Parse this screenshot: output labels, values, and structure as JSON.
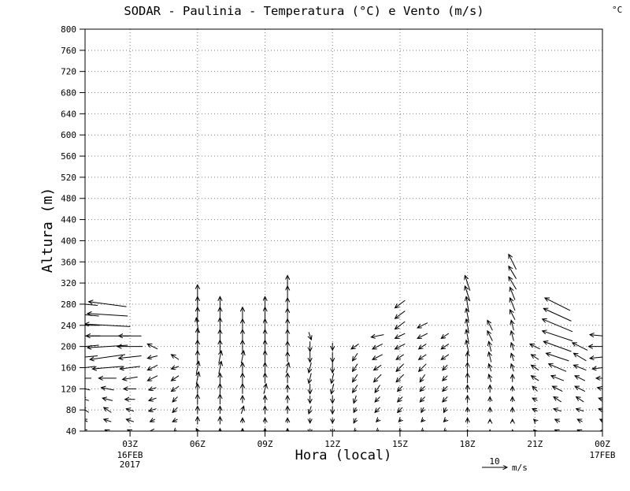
{
  "chart_data": {
    "type": "vector",
    "title": "SODAR  - Paulinia - Temperatura (°C) e Vento (m/s)",
    "units_corner_label": "°C",
    "xlabel": "Hora (local)",
    "ylabel": "Altura (m)",
    "ylim": [
      40,
      800
    ],
    "y_ticks": [
      800,
      760,
      720,
      680,
      640,
      600,
      560,
      520,
      480,
      440,
      400,
      360,
      320,
      280,
      240,
      200,
      160,
      120,
      80,
      40
    ],
    "x_tick_labels": [
      "03Z",
      "06Z",
      "09Z",
      "12Z",
      "15Z",
      "18Z",
      "21Z",
      "00Z"
    ],
    "x_tick_hours": [
      3,
      6,
      9,
      12,
      15,
      18,
      21,
      24
    ],
    "x_hours_range": [
      1,
      24
    ],
    "x_start_date": {
      "line1": "16FEB",
      "line2": "2017"
    },
    "x_end_date": "17FEB",
    "grid": "dotted",
    "legend_position": "bottom-right",
    "reference_vector": {
      "label": "10",
      "unit": "m/s",
      "speed_ms": 10
    },
    "wind_vectors_hour_height_u_v": [
      [
        1,
        40,
        -2,
        1
      ],
      [
        1,
        60,
        -2,
        1
      ],
      [
        1,
        80,
        -3,
        2
      ],
      [
        1,
        100,
        -3,
        1
      ],
      [
        1,
        120,
        -4,
        1
      ],
      [
        1,
        140,
        -5,
        0
      ],
      [
        1,
        160,
        -8,
        -1
      ],
      [
        1,
        180,
        -10,
        -1
      ],
      [
        1,
        200,
        -11,
        -1
      ],
      [
        1,
        220,
        -12,
        0
      ],
      [
        1,
        240,
        -12,
        0
      ],
      [
        1,
        260,
        -11,
        1
      ],
      [
        1,
        280,
        -10,
        1
      ],
      [
        2,
        40,
        -2,
        1
      ],
      [
        2,
        60,
        -3,
        1
      ],
      [
        2,
        80,
        -3,
        2
      ],
      [
        2,
        100,
        -4,
        1
      ],
      [
        2,
        120,
        -5,
        1
      ],
      [
        2,
        140,
        -7,
        0
      ],
      [
        2,
        160,
        -12,
        -1
      ],
      [
        2,
        180,
        -14,
        -2
      ],
      [
        2,
        200,
        -16,
        -1
      ],
      [
        2,
        220,
        -17,
        0
      ],
      [
        2,
        240,
        -18,
        1
      ],
      [
        2,
        260,
        -16,
        1
      ],
      [
        2,
        280,
        -15,
        2
      ],
      [
        3,
        40,
        -2,
        1
      ],
      [
        3,
        60,
        -3,
        1
      ],
      [
        3,
        80,
        -3,
        1
      ],
      [
        3,
        100,
        -4,
        0
      ],
      [
        3,
        120,
        -5,
        0
      ],
      [
        3,
        140,
        -6,
        -1
      ],
      [
        3,
        160,
        -8,
        -1
      ],
      [
        3,
        180,
        -9,
        -1
      ],
      [
        3,
        200,
        -10,
        0
      ],
      [
        3,
        220,
        -9,
        0
      ],
      [
        4,
        40,
        -2,
        0
      ],
      [
        4,
        60,
        -2,
        -1
      ],
      [
        4,
        80,
        -3,
        -1
      ],
      [
        4,
        100,
        -3,
        -1
      ],
      [
        4,
        120,
        -3,
        -1
      ],
      [
        4,
        140,
        -4,
        -2
      ],
      [
        4,
        160,
        -4,
        -2
      ],
      [
        4,
        180,
        -4,
        -1
      ],
      [
        4,
        200,
        -4,
        2
      ],
      [
        5,
        40,
        -1,
        -1
      ],
      [
        5,
        60,
        -2,
        -1
      ],
      [
        5,
        80,
        -2,
        -2
      ],
      [
        5,
        100,
        -2,
        -2
      ],
      [
        5,
        120,
        -3,
        -2
      ],
      [
        5,
        140,
        -3,
        -2
      ],
      [
        5,
        160,
        -3,
        -1
      ],
      [
        5,
        180,
        -3,
        2
      ],
      [
        6,
        40,
        -1,
        2
      ],
      [
        6,
        60,
        0,
        3
      ],
      [
        6,
        80,
        0,
        3
      ],
      [
        6,
        100,
        0,
        4
      ],
      [
        6,
        120,
        0,
        4
      ],
      [
        6,
        140,
        1,
        5
      ],
      [
        6,
        160,
        1,
        5
      ],
      [
        6,
        180,
        0,
        5
      ],
      [
        6,
        200,
        0,
        5
      ],
      [
        6,
        220,
        0,
        6
      ],
      [
        6,
        240,
        -1,
        6
      ],
      [
        6,
        260,
        0,
        6
      ],
      [
        6,
        280,
        0,
        6
      ],
      [
        6,
        300,
        0,
        7
      ],
      [
        7,
        40,
        0,
        2
      ],
      [
        7,
        60,
        0,
        3
      ],
      [
        7,
        80,
        0,
        3
      ],
      [
        7,
        100,
        0,
        4
      ],
      [
        7,
        120,
        0,
        4
      ],
      [
        7,
        140,
        0,
        4
      ],
      [
        7,
        160,
        1,
        5
      ],
      [
        7,
        180,
        1,
        5
      ],
      [
        7,
        200,
        0,
        5
      ],
      [
        7,
        220,
        0,
        5
      ],
      [
        7,
        240,
        0,
        6
      ],
      [
        7,
        260,
        0,
        6
      ],
      [
        7,
        280,
        0,
        6
      ],
      [
        8,
        40,
        0,
        2
      ],
      [
        8,
        60,
        0,
        2
      ],
      [
        8,
        80,
        1,
        3
      ],
      [
        8,
        100,
        0,
        3
      ],
      [
        8,
        120,
        0,
        4
      ],
      [
        8,
        140,
        0,
        4
      ],
      [
        8,
        160,
        0,
        4
      ],
      [
        8,
        180,
        1,
        5
      ],
      [
        8,
        200,
        0,
        5
      ],
      [
        8,
        220,
        0,
        5
      ],
      [
        8,
        240,
        0,
        5
      ],
      [
        8,
        260,
        0,
        6
      ],
      [
        9,
        40,
        0,
        2
      ],
      [
        9,
        60,
        0,
        2
      ],
      [
        9,
        80,
        0,
        3
      ],
      [
        9,
        100,
        0,
        3
      ],
      [
        9,
        120,
        1,
        4
      ],
      [
        9,
        140,
        0,
        4
      ],
      [
        9,
        160,
        0,
        4
      ],
      [
        9,
        180,
        0,
        5
      ],
      [
        9,
        200,
        0,
        5
      ],
      [
        9,
        220,
        0,
        5
      ],
      [
        9,
        240,
        0,
        5
      ],
      [
        9,
        260,
        0,
        6
      ],
      [
        9,
        280,
        0,
        6
      ],
      [
        10,
        40,
        0,
        2
      ],
      [
        10,
        60,
        0,
        2
      ],
      [
        10,
        80,
        0,
        3
      ],
      [
        10,
        100,
        0,
        3
      ],
      [
        10,
        120,
        0,
        3
      ],
      [
        10,
        140,
        0,
        4
      ],
      [
        10,
        160,
        1,
        4
      ],
      [
        10,
        180,
        0,
        4
      ],
      [
        10,
        200,
        0,
        4
      ],
      [
        10,
        220,
        0,
        5
      ],
      [
        10,
        240,
        0,
        5
      ],
      [
        10,
        260,
        0,
        5
      ],
      [
        10,
        280,
        0,
        5
      ],
      [
        10,
        300,
        0,
        6
      ],
      [
        10,
        320,
        0,
        6
      ],
      [
        11,
        40,
        0,
        -2
      ],
      [
        11,
        60,
        0,
        -2
      ],
      [
        11,
        80,
        -1,
        -3
      ],
      [
        11,
        100,
        0,
        -3
      ],
      [
        11,
        120,
        0,
        -4
      ],
      [
        11,
        140,
        -1,
        -4
      ],
      [
        11,
        160,
        -1,
        -4
      ],
      [
        11,
        180,
        0,
        -4
      ],
      [
        11,
        200,
        0,
        -4
      ],
      [
        11,
        220,
        1,
        -3
      ],
      [
        12,
        40,
        0,
        -2
      ],
      [
        12,
        60,
        0,
        -2
      ],
      [
        12,
        80,
        0,
        -3
      ],
      [
        12,
        100,
        0,
        -3
      ],
      [
        12,
        120,
        -1,
        -4
      ],
      [
        12,
        140,
        -1,
        -4
      ],
      [
        12,
        160,
        0,
        -4
      ],
      [
        12,
        180,
        0,
        -4
      ],
      [
        12,
        200,
        0,
        -3
      ],
      [
        13,
        40,
        -1,
        -1
      ],
      [
        13,
        60,
        -1,
        -2
      ],
      [
        13,
        80,
        -1,
        -2
      ],
      [
        13,
        100,
        -1,
        -3
      ],
      [
        13,
        120,
        -2,
        -3
      ],
      [
        13,
        140,
        -2,
        -3
      ],
      [
        13,
        160,
        -2,
        -3
      ],
      [
        13,
        180,
        -2,
        -3
      ],
      [
        13,
        200,
        -3,
        -2
      ],
      [
        14,
        40,
        -1,
        -1
      ],
      [
        14,
        60,
        -1,
        -1
      ],
      [
        14,
        80,
        -2,
        -2
      ],
      [
        14,
        100,
        -2,
        -2
      ],
      [
        14,
        120,
        -2,
        -3
      ],
      [
        14,
        140,
        -3,
        -3
      ],
      [
        14,
        160,
        -3,
        -2
      ],
      [
        14,
        180,
        -4,
        -2
      ],
      [
        14,
        200,
        -4,
        -2
      ],
      [
        14,
        220,
        -5,
        -1
      ],
      [
        15,
        40,
        -1,
        -1
      ],
      [
        15,
        60,
        -1,
        -1
      ],
      [
        15,
        80,
        -2,
        -2
      ],
      [
        15,
        100,
        -2,
        -2
      ],
      [
        15,
        120,
        -2,
        -2
      ],
      [
        15,
        140,
        -3,
        -3
      ],
      [
        15,
        160,
        -3,
        -3
      ],
      [
        15,
        180,
        -3,
        -2
      ],
      [
        15,
        200,
        -4,
        -2
      ],
      [
        15,
        220,
        -4,
        -2
      ],
      [
        15,
        240,
        -4,
        -3
      ],
      [
        15,
        260,
        -4,
        -3
      ],
      [
        15,
        280,
        -4,
        -3
      ],
      [
        16,
        40,
        -1,
        -1
      ],
      [
        16,
        60,
        -1,
        -1
      ],
      [
        16,
        80,
        -1,
        -2
      ],
      [
        16,
        100,
        -2,
        -2
      ],
      [
        16,
        120,
        -2,
        -2
      ],
      [
        16,
        140,
        -2,
        -3
      ],
      [
        16,
        160,
        -3,
        -3
      ],
      [
        16,
        180,
        -3,
        -2
      ],
      [
        16,
        200,
        -3,
        -2
      ],
      [
        16,
        220,
        -4,
        -2
      ],
      [
        16,
        240,
        -4,
        -2
      ],
      [
        17,
        40,
        -1,
        -1
      ],
      [
        17,
        60,
        -1,
        -1
      ],
      [
        17,
        80,
        -1,
        -2
      ],
      [
        17,
        100,
        -2,
        -2
      ],
      [
        17,
        120,
        -2,
        -2
      ],
      [
        17,
        140,
        -2,
        -2
      ],
      [
        17,
        160,
        -2,
        -2
      ],
      [
        17,
        180,
        -3,
        -2
      ],
      [
        17,
        200,
        -3,
        -2
      ],
      [
        17,
        220,
        -3,
        -2
      ],
      [
        18,
        40,
        0,
        1
      ],
      [
        18,
        60,
        0,
        2
      ],
      [
        18,
        80,
        0,
        2
      ],
      [
        18,
        100,
        0,
        3
      ],
      [
        18,
        120,
        0,
        3
      ],
      [
        18,
        140,
        0,
        4
      ],
      [
        18,
        160,
        0,
        4
      ],
      [
        18,
        180,
        0,
        4
      ],
      [
        18,
        200,
        -1,
        5
      ],
      [
        18,
        220,
        -1,
        5
      ],
      [
        18,
        240,
        -1,
        5
      ],
      [
        18,
        260,
        -1,
        5
      ],
      [
        18,
        280,
        -1,
        6
      ],
      [
        18,
        300,
        -2,
        6
      ],
      [
        18,
        320,
        -2,
        6
      ],
      [
        19,
        40,
        0,
        1
      ],
      [
        19,
        60,
        0,
        1
      ],
      [
        19,
        80,
        0,
        2
      ],
      [
        19,
        100,
        0,
        2
      ],
      [
        19,
        120,
        0,
        3
      ],
      [
        19,
        140,
        -1,
        3
      ],
      [
        19,
        160,
        -1,
        3
      ],
      [
        19,
        180,
        -1,
        4
      ],
      [
        19,
        200,
        -1,
        4
      ],
      [
        19,
        220,
        -2,
        4
      ],
      [
        19,
        240,
        -2,
        4
      ],
      [
        20,
        40,
        0,
        1
      ],
      [
        20,
        60,
        0,
        1
      ],
      [
        20,
        80,
        0,
        2
      ],
      [
        20,
        100,
        0,
        2
      ],
      [
        20,
        120,
        0,
        2
      ],
      [
        20,
        140,
        0,
        3
      ],
      [
        20,
        160,
        -1,
        3
      ],
      [
        20,
        180,
        -1,
        3
      ],
      [
        20,
        200,
        -1,
        3
      ],
      [
        20,
        220,
        -1,
        4
      ],
      [
        20,
        240,
        -1,
        4
      ],
      [
        20,
        260,
        -2,
        4
      ],
      [
        20,
        280,
        -2,
        5
      ],
      [
        20,
        300,
        -2,
        5
      ],
      [
        20,
        320,
        -3,
        5
      ],
      [
        20,
        340,
        -3,
        5
      ],
      [
        20,
        360,
        -3,
        6
      ],
      [
        21,
        40,
        -1,
        1
      ],
      [
        21,
        60,
        -1,
        1
      ],
      [
        21,
        80,
        -2,
        1
      ],
      [
        21,
        100,
        -2,
        1
      ],
      [
        21,
        120,
        -2,
        2
      ],
      [
        21,
        140,
        -3,
        2
      ],
      [
        21,
        160,
        -3,
        2
      ],
      [
        21,
        180,
        -3,
        2
      ],
      [
        21,
        200,
        -4,
        2
      ],
      [
        22,
        40,
        -2,
        1
      ],
      [
        22,
        60,
        -2,
        1
      ],
      [
        22,
        80,
        -3,
        1
      ],
      [
        22,
        100,
        -3,
        2
      ],
      [
        22,
        120,
        -4,
        2
      ],
      [
        22,
        140,
        -5,
        2
      ],
      [
        22,
        160,
        -7,
        3
      ],
      [
        22,
        180,
        -9,
        3
      ],
      [
        22,
        200,
        -11,
        4
      ],
      [
        22,
        220,
        -12,
        4
      ],
      [
        22,
        240,
        -12,
        5
      ],
      [
        22,
        260,
        -11,
        5
      ],
      [
        22,
        280,
        -10,
        5
      ],
      [
        23,
        40,
        -2,
        1
      ],
      [
        23,
        60,
        -2,
        1
      ],
      [
        23,
        80,
        -3,
        1
      ],
      [
        23,
        100,
        -3,
        2
      ],
      [
        23,
        120,
        -4,
        2
      ],
      [
        23,
        140,
        -4,
        2
      ],
      [
        23,
        160,
        -5,
        2
      ],
      [
        23,
        180,
        -5,
        3
      ],
      [
        23,
        200,
        -6,
        3
      ],
      [
        24,
        40,
        -2,
        0
      ],
      [
        24,
        60,
        -2,
        1
      ],
      [
        24,
        80,
        -3,
        1
      ],
      [
        24,
        100,
        -3,
        1
      ],
      [
        24,
        120,
        -4,
        1
      ],
      [
        24,
        140,
        -5,
        0
      ],
      [
        24,
        160,
        -8,
        -1
      ],
      [
        24,
        180,
        -10,
        -1
      ],
      [
        24,
        200,
        -11,
        0
      ],
      [
        24,
        220,
        -10,
        1
      ]
    ]
  }
}
